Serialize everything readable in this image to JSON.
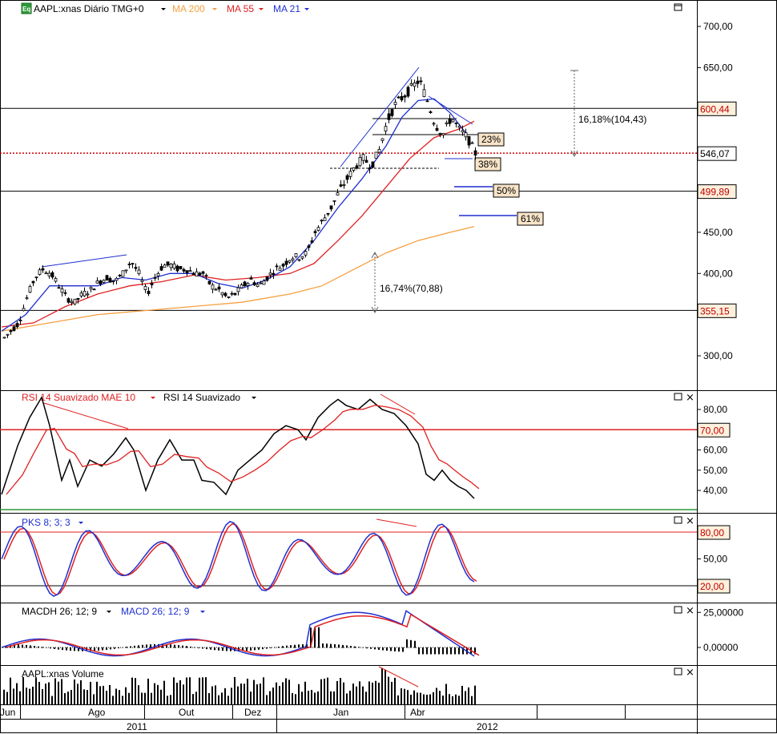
{
  "colors": {
    "ma200": "#f5a040",
    "ma55": "#e02020",
    "ma21": "#1f2fd0",
    "rsi": "#000000",
    "rsi_ma": "#e02020",
    "stoch_k": "#1f2fd0",
    "stoch_d": "#e02020",
    "macd": "#1f2fd0",
    "macd_signal": "#e02020",
    "price_badge_bg": "#fdf0dc",
    "badge_text_red": "#c00000",
    "fib_bg": "#f8e4c8"
  },
  "header": {
    "symbol_icon": "Eq",
    "instrument_label": "AAPL:xnas Diário TMG+0",
    "ma200_label": "MA 200",
    "ma55_label": "MA 55",
    "ma21_label": "MA 21"
  },
  "price_panel": {
    "y_ticks": [
      "700,00",
      "650,00",
      "600,00",
      "550,00",
      "500,00",
      "450,00",
      "400,00",
      "350,00",
      "300,00"
    ],
    "price_badges": [
      {
        "value": "600,44",
        "color": "red"
      },
      {
        "value": "546,07",
        "color": "black"
      },
      {
        "value": "499,89",
        "color": "red"
      },
      {
        "value": "355,15",
        "color": "red"
      }
    ],
    "fib_labels": [
      "23%",
      "38%",
      "50%",
      "61%"
    ],
    "annotations": [
      "16,18%(104,43)",
      "16,74%(70,88)"
    ]
  },
  "rsi_panel": {
    "title_red": "RSI 14 Suavizado MAE 10",
    "title_black": "RSI 14 Suavizado",
    "y_ticks": [
      "80,00",
      "70,00",
      "60,00",
      "50,00",
      "40,00"
    ],
    "level_badge": "70,00"
  },
  "stoch_panel": {
    "title": "PKS 8; 3; 3",
    "y_ticks": [
      "80,00",
      "50,00",
      "20,00"
    ]
  },
  "macd_panel": {
    "title_black": "MACDH 26; 12; 9",
    "title_blue": "MACD 26; 12; 9",
    "y_ticks": [
      "25,00000",
      "0,00000"
    ]
  },
  "volume_panel": {
    "title": "AAPL:xnas Volume"
  },
  "x_axis": {
    "months": [
      "Jun",
      "Ago",
      "Out",
      "Dez",
      "Jan",
      "Abr"
    ],
    "years": [
      "2011",
      "2011",
      "2012"
    ]
  },
  "chart_data": {
    "type": "candlestick",
    "title": "AAPL:xnas Diário TMG+0",
    "ylim": [
      250,
      725
    ],
    "close_path": [
      [
        0,
        320
      ],
      [
        10,
        330
      ],
      [
        20,
        340
      ],
      [
        30,
        370
      ],
      [
        40,
        395
      ],
      [
        50,
        405
      ],
      [
        60,
        400
      ],
      [
        70,
        385
      ],
      [
        80,
        370
      ],
      [
        90,
        365
      ],
      [
        100,
        375
      ],
      [
        110,
        380
      ],
      [
        120,
        390
      ],
      [
        130,
        395
      ],
      [
        140,
        390
      ],
      [
        150,
        400
      ],
      [
        160,
        415
      ],
      [
        170,
        400
      ],
      [
        180,
        375
      ],
      [
        190,
        395
      ],
      [
        200,
        410
      ],
      [
        210,
        410
      ],
      [
        220,
        405
      ],
      [
        230,
        405
      ],
      [
        240,
        400
      ],
      [
        250,
        400
      ],
      [
        260,
        385
      ],
      [
        270,
        380
      ],
      [
        280,
        370
      ],
      [
        290,
        375
      ],
      [
        300,
        385
      ],
      [
        310,
        392
      ],
      [
        320,
        385
      ],
      [
        330,
        395
      ],
      [
        340,
        405
      ],
      [
        350,
        410
      ],
      [
        360,
        420
      ],
      [
        370,
        420
      ],
      [
        380,
        425
      ],
      [
        390,
        450
      ],
      [
        400,
        465
      ],
      [
        410,
        480
      ],
      [
        420,
        500
      ],
      [
        430,
        515
      ],
      [
        440,
        530
      ],
      [
        450,
        540
      ],
      [
        460,
        530
      ],
      [
        470,
        550
      ],
      [
        480,
        585
      ],
      [
        490,
        605
      ],
      [
        500,
        615
      ],
      [
        510,
        625
      ],
      [
        520,
        635
      ],
      [
        530,
        610
      ],
      [
        540,
        580
      ],
      [
        550,
        570
      ],
      [
        560,
        590
      ],
      [
        570,
        575
      ],
      [
        580,
        565
      ],
      [
        590,
        546
      ]
    ],
    "ma21_path": [
      [
        0,
        330
      ],
      [
        30,
        350
      ],
      [
        60,
        385
      ],
      [
        90,
        385
      ],
      [
        120,
        385
      ],
      [
        150,
        395
      ],
      [
        180,
        392
      ],
      [
        210,
        400
      ],
      [
        240,
        400
      ],
      [
        270,
        388
      ],
      [
        300,
        382
      ],
      [
        330,
        392
      ],
      [
        360,
        408
      ],
      [
        390,
        440
      ],
      [
        420,
        480
      ],
      [
        450,
        515
      ],
      [
        480,
        555
      ],
      [
        500,
        590
      ],
      [
        520,
        610
      ],
      [
        540,
        612
      ],
      [
        560,
        595
      ],
      [
        580,
        570
      ]
    ],
    "ma55_path": [
      [
        0,
        335
      ],
      [
        40,
        340
      ],
      [
        80,
        360
      ],
      [
        120,
        375
      ],
      [
        160,
        385
      ],
      [
        200,
        390
      ],
      [
        240,
        398
      ],
      [
        280,
        392
      ],
      [
        320,
        395
      ],
      [
        360,
        400
      ],
      [
        390,
        412
      ],
      [
        420,
        440
      ],
      [
        450,
        470
      ],
      [
        480,
        505
      ],
      [
        510,
        540
      ],
      [
        540,
        565
      ],
      [
        570,
        575
      ],
      [
        590,
        585
      ]
    ],
    "ma200_path": [
      [
        0,
        330
      ],
      [
        60,
        340
      ],
      [
        120,
        350
      ],
      [
        180,
        355
      ],
      [
        240,
        360
      ],
      [
        300,
        365
      ],
      [
        360,
        375
      ],
      [
        400,
        385
      ],
      [
        440,
        405
      ],
      [
        480,
        425
      ],
      [
        520,
        440
      ],
      [
        560,
        450
      ],
      [
        590,
        457
      ]
    ],
    "horizontal_levels": [
      600.44,
      546.07,
      499.89,
      355.15
    ],
    "fib_levels": {
      "23%": 570,
      "38%": 545,
      "50%": 500,
      "61%": 465
    },
    "rsi_series": [
      [
        0,
        38
      ],
      [
        20,
        62
      ],
      [
        35,
        76
      ],
      [
        50,
        86
      ],
      [
        60,
        72
      ],
      [
        75,
        45
      ],
      [
        85,
        55
      ],
      [
        95,
        42
      ],
      [
        110,
        55
      ],
      [
        125,
        52
      ],
      [
        140,
        58
      ],
      [
        155,
        66
      ],
      [
        165,
        60
      ],
      [
        180,
        40
      ],
      [
        195,
        55
      ],
      [
        210,
        65
      ],
      [
        225,
        55
      ],
      [
        240,
        55
      ],
      [
        250,
        45
      ],
      [
        265,
        44
      ],
      [
        280,
        38
      ],
      [
        295,
        50
      ],
      [
        310,
        55
      ],
      [
        325,
        60
      ],
      [
        340,
        68
      ],
      [
        355,
        72
      ],
      [
        370,
        70
      ],
      [
        380,
        65
      ],
      [
        395,
        76
      ],
      [
        410,
        82
      ],
      [
        420,
        85
      ],
      [
        430,
        82
      ],
      [
        445,
        80
      ],
      [
        460,
        85
      ],
      [
        475,
        80
      ],
      [
        490,
        78
      ],
      [
        505,
        72
      ],
      [
        520,
        63
      ],
      [
        530,
        48
      ],
      [
        540,
        45
      ],
      [
        550,
        50
      ],
      [
        560,
        45
      ],
      [
        570,
        42
      ],
      [
        580,
        40
      ],
      [
        590,
        36
      ]
    ],
    "rsi_level": 70
  }
}
